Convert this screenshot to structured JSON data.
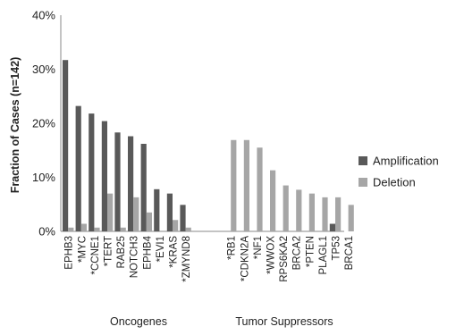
{
  "chart_data": {
    "type": "bar",
    "ylabel": "Fraction of Cases (n=142)",
    "ylim": [
      0,
      40
    ],
    "yticks": [
      "0%",
      "10%",
      "20%",
      "30%",
      "40%"
    ],
    "grid": false,
    "legend_position": "right",
    "series": [
      {
        "name": "Amplification",
        "color": "#595959"
      },
      {
        "name": "Deletion",
        "color": "#a6a6a6"
      }
    ],
    "groups": [
      {
        "label": "Oncogenes",
        "categories": [
          "EPHB3",
          "*MYC",
          "*CCNE1",
          "*TERT",
          "RAB25",
          "NOTCH3",
          "EPHB4",
          "*EVI1",
          "*KRAS",
          "*ZMYND8"
        ],
        "amplification": [
          31.7,
          23.2,
          21.8,
          20.4,
          18.3,
          17.6,
          16.2,
          7.8,
          7.0,
          4.9
        ],
        "deletion": [
          0.7,
          1.4,
          0.7,
          7.0,
          0.7,
          6.3,
          3.5,
          0,
          2.1,
          0.7
        ]
      },
      {
        "label": "Tumor Suppressors",
        "categories": [
          "*RB1",
          "*CDKN2A",
          "*NF1",
          "*WWOX",
          "RPS6KA2",
          "BRCA2",
          "*PTEN",
          "PLAGL1",
          "TP53",
          "BRCA1"
        ],
        "amplification": [
          0,
          0,
          0,
          0,
          0,
          0,
          0,
          0,
          1.4,
          0
        ],
        "deletion": [
          16.9,
          16.9,
          15.5,
          11.3,
          8.5,
          7.7,
          7.0,
          6.3,
          6.3,
          4.9
        ]
      }
    ]
  }
}
